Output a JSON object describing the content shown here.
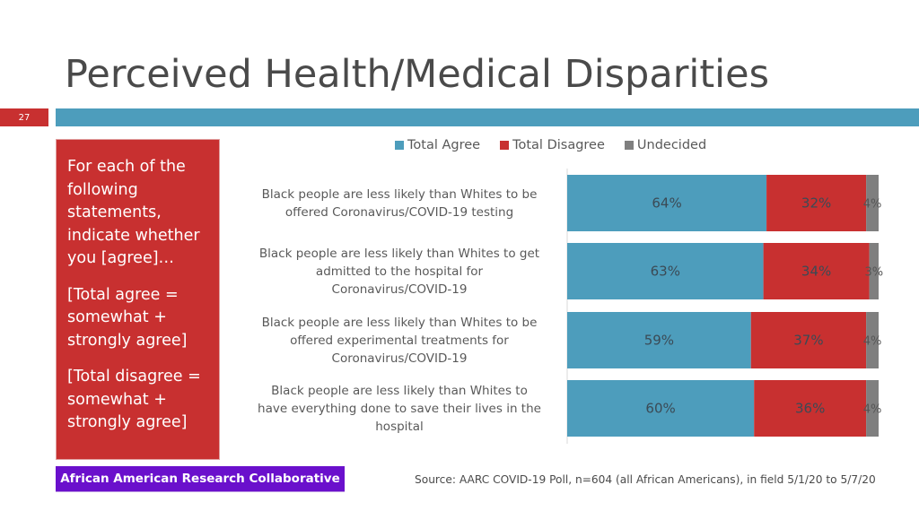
{
  "slide": {
    "title": "Perceived Health/Medical Disparities",
    "number": "27",
    "sidebar_paragraphs": [
      "For each of the following statements, indicate whether you [agree]…",
      "[Total agree = somewhat + strongly agree]",
      "[Total disagree = somewhat + strongly agree]"
    ],
    "org_badge": "African American Research Collaborative",
    "source": "Source: AARC COVID-19 Poll, n=604 (all African Americans), in field 5/1/20 to 5/7/20"
  },
  "colors": {
    "agree": "#4d9dbc",
    "disagree": "#c83030",
    "undecided": "#7f7f7f",
    "accent_bar": "#4d9dbc",
    "badge": "#6a10cc"
  },
  "chart_data": {
    "type": "bar",
    "orientation": "horizontal",
    "stacked": true,
    "title": "",
    "xlabel": "",
    "ylabel": "",
    "xlim": [
      0,
      100
    ],
    "grid": false,
    "legend_position": "top",
    "legend": [
      "Total Agree",
      "Total Disagree",
      "Undecided"
    ],
    "categories": [
      "Black people are less likely than Whites to be offered Coronavirus/COVID-19 testing",
      "Black people are less likely than Whites to get admitted to the hospital for Coronavirus/COVID-19",
      "Black people are less likely than Whites to be offered experimental treatments for Coronavirus/COVID-19",
      "Black people are less likely than Whites to have everything done to save their lives in the hospital"
    ],
    "category_lines": [
      [
        "Black people are less likely than Whites to be",
        "offered Coronavirus/COVID-19 testing"
      ],
      [
        "Black people are less likely than Whites to get",
        "admitted to the hospital for",
        "Coronavirus/COVID-19"
      ],
      [
        "Black people are less likely than Whites to be",
        "offered experimental treatments for",
        "Coronavirus/COVID-19"
      ],
      [
        "Black people are less likely than Whites to",
        "have everything done to save their lives in the",
        "hospital"
      ]
    ],
    "series": [
      {
        "name": "Total Agree",
        "values": [
          64,
          63,
          59,
          60
        ],
        "labels": [
          "64%",
          "63%",
          "59%",
          "60%"
        ]
      },
      {
        "name": "Total Disagree",
        "values": [
          32,
          34,
          37,
          36
        ],
        "labels": [
          "32%",
          "34%",
          "37%",
          "36%"
        ]
      },
      {
        "name": "Undecided",
        "values": [
          4,
          3,
          4,
          4
        ],
        "labels": [
          "4%",
          "3%",
          "4%",
          "4%"
        ]
      }
    ]
  }
}
